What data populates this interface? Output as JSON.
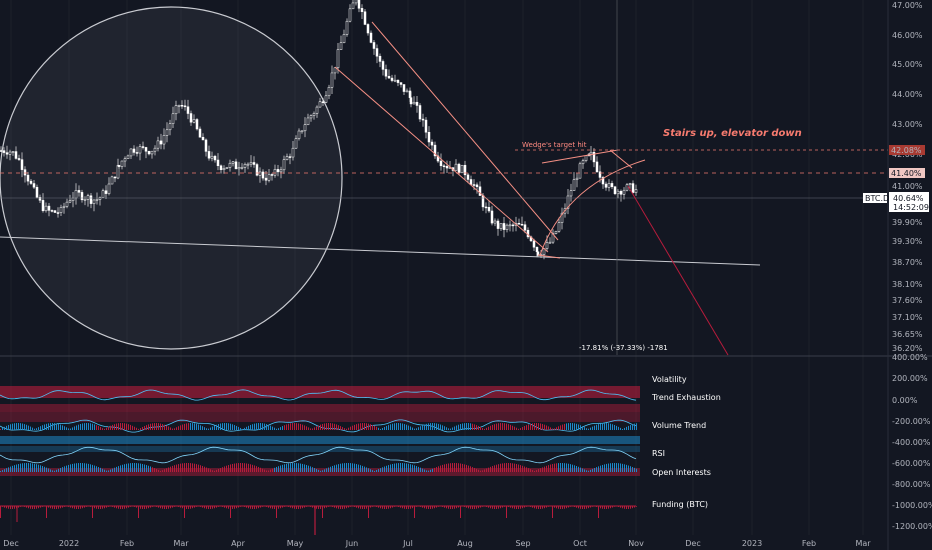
{
  "chart_data": {
    "type": "candlestick",
    "symbol": "BTC.D",
    "price_label": "40.64%",
    "countdown": "14:52:09",
    "level_label": "41.40%",
    "target_label": "42.08%",
    "annotation_title": "Stairs up, elevator down",
    "annotation_target": "Wedge's target hit",
    "measure_text": "-17.81% (-37.33%) -1781",
    "y_ticks": [
      "47.00%",
      "46.00%",
      "45.00%",
      "44.00%",
      "43.00%",
      "42.00%",
      "41.00%",
      "40.00%",
      "39.90%",
      "39.30%",
      "38.70%",
      "38.10%",
      "37.60%",
      "37.10%",
      "36.65%",
      "36.20%"
    ],
    "y_tick_values": [
      47.0,
      46.0,
      45.0,
      44.0,
      43.0,
      42.0,
      41.0,
      40.0,
      39.9,
      39.3,
      38.7,
      38.1,
      37.6,
      37.1,
      36.65,
      36.2
    ],
    "x_ticks": [
      "Dec",
      "2022",
      "Feb",
      "Mar",
      "Apr",
      "May",
      "Jun",
      "Jul",
      "Aug",
      "Sep",
      "Oct",
      "Nov",
      "Dec",
      "2023",
      "Feb",
      "Mar"
    ],
    "indicator_ticks": [
      "400.00%",
      "200.00%",
      "0.00%",
      "-200.00%",
      "-400.00%",
      "-600.00%",
      "-800.00%",
      "-1000.00%",
      "-1200.00%"
    ],
    "indicator_labels": [
      "Volatility",
      "Trend Exhaustion",
      "Volume Trend",
      "RSI",
      "Open Interests",
      "Funding (BTC)"
    ],
    "price_series_months": [
      "Dec",
      "Jan",
      "Feb",
      "Mar",
      "Apr",
      "May",
      "Jun",
      "Jul",
      "Aug",
      "Sep",
      "Oct",
      "Nov"
    ],
    "price_series_approx": [
      42.3,
      40.2,
      41.6,
      43.5,
      41.5,
      42.0,
      46.9,
      43.6,
      41.0,
      39.0,
      42.0,
      40.64
    ]
  },
  "colors": {
    "background": "#131722",
    "up": "#ffffff",
    "down": "#ffffff",
    "wedge": "#f48f84",
    "dashed": "#f27b70",
    "projection": "#b71c3c",
    "indicator_red": "#b71c3c",
    "indicator_blue": "#1e88c8",
    "grid": "#2a2e39"
  }
}
